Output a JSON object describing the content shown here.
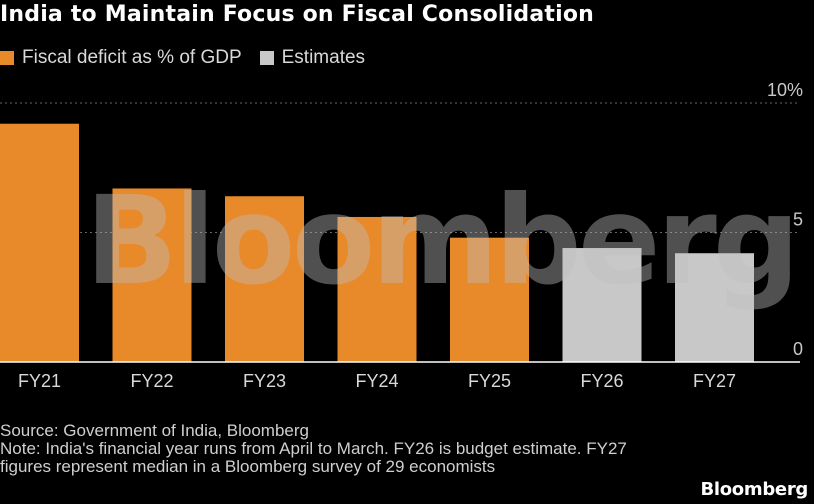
{
  "title": "India to Maintain Focus on Fiscal Consolidation",
  "legend": [
    {
      "label": "Fiscal deficit as % of GDP",
      "color": "#e8892a"
    },
    {
      "label": "Estimates",
      "color": "#c8c8c8"
    }
  ],
  "chart_data": {
    "type": "bar",
    "categories": [
      "FY21",
      "FY22",
      "FY23",
      "FY24",
      "FY25",
      "FY26",
      "FY27"
    ],
    "values": [
      9.2,
      6.7,
      6.4,
      5.6,
      4.8,
      4.4,
      4.2
    ],
    "estimate_flags": [
      false,
      false,
      false,
      false,
      false,
      true,
      true
    ],
    "colors": {
      "actual": "#e8892a",
      "estimate": "#c8c8c8"
    },
    "ylim": [
      0,
      10
    ],
    "yticks": [
      0,
      5,
      10
    ],
    "ytick_labels": [
      "0",
      "5",
      "10%"
    ],
    "grid": true,
    "y_axis_position": "right",
    "legend_position": "top-left"
  },
  "watermark": "Bloomberg",
  "footer": {
    "source": "Source: Government of India, Bloomberg",
    "note": "Note: India's financial year runs from April to March. FY26 is budget estimate. FY27 figures represent median in a Bloomberg survey of 29 economists"
  },
  "brand": "Bloomberg"
}
